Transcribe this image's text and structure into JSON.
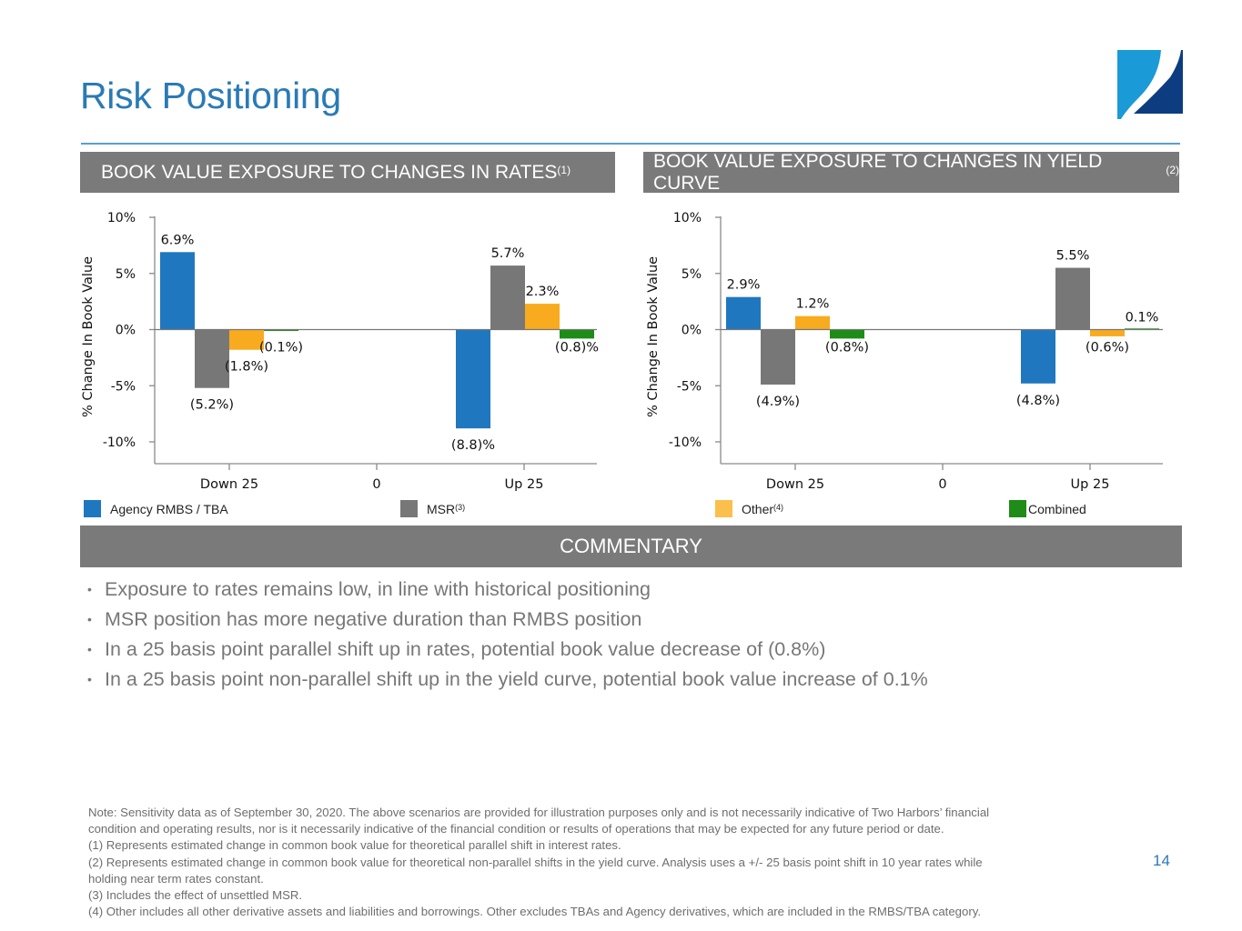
{
  "header": {
    "title": "Risk Positioning",
    "logo": "two-harbors-logo"
  },
  "sections": {
    "rates": {
      "title": "BOOK VALUE EXPOSURE TO CHANGES IN RATES",
      "footnote": "(1)"
    },
    "curve": {
      "title": "BOOK VALUE EXPOSURE TO CHANGES IN YIELD CURVE",
      "footnote": "(2)"
    }
  },
  "colors": {
    "agency": "#1f77bf",
    "msr": "#777777",
    "other": "#f8ab1e",
    "combined": "#1e8c17",
    "title_blue": "#2a7ab5",
    "section_gray": "#7a7a7a"
  },
  "chart_data": [
    {
      "type": "bar",
      "title": "BOOK VALUE EXPOSURE TO CHANGES IN RATES(1)",
      "xlabel": "",
      "ylabel": "% Change In Book Value",
      "ylim": [
        -10,
        10
      ],
      "yticks": [
        10,
        5,
        0,
        -5,
        -10
      ],
      "ytick_labels": [
        "10%",
        "5%",
        "0%",
        "-5%",
        "-10%"
      ],
      "categories": [
        "Down 25",
        "0",
        "Up 25"
      ],
      "series": [
        {
          "name": "Agency RMBS / TBA",
          "values": [
            6.9,
            null,
            -8.8
          ],
          "labels": [
            "6.9%",
            "",
            "(8.8)%"
          ]
        },
        {
          "name": "MSR(3)",
          "values": [
            -5.2,
            null,
            5.7
          ],
          "labels": [
            "(5.2%)",
            "",
            "5.7%"
          ]
        },
        {
          "name": "Other(4)",
          "values": [
            -1.8,
            null,
            2.3
          ],
          "labels": [
            "(1.8%)",
            "",
            "2.3%"
          ]
        },
        {
          "name": "Combined",
          "values": [
            -0.1,
            null,
            -0.8
          ],
          "labels": [
            "(0.1%)",
            "",
            "(0.8)%"
          ]
        }
      ],
      "grid": false,
      "legend": "bottom"
    },
    {
      "type": "bar",
      "title": "BOOK VALUE EXPOSURE TO CHANGES IN YIELD CURVE(2)",
      "xlabel": "",
      "ylabel": "% Change In Book Value",
      "ylim": [
        -10,
        10
      ],
      "yticks": [
        10,
        5,
        0,
        -5,
        -10
      ],
      "ytick_labels": [
        "10%",
        "5%",
        "0%",
        "-5%",
        "-10%"
      ],
      "categories": [
        "Down 25",
        "0",
        "Up 25"
      ],
      "series": [
        {
          "name": "Agency RMBS / TBA",
          "values": [
            2.9,
            null,
            -4.8
          ],
          "labels": [
            "2.9%",
            "",
            "(4.8%)"
          ]
        },
        {
          "name": "MSR(3)",
          "values": [
            -4.9,
            null,
            5.5
          ],
          "labels": [
            "(4.9%)",
            "",
            "5.5%"
          ]
        },
        {
          "name": "Other(4)",
          "values": [
            1.2,
            null,
            -0.6
          ],
          "labels": [
            "1.2%",
            "",
            "(0.6%)"
          ]
        },
        {
          "name": "Combined",
          "values": [
            -0.8,
            null,
            0.1
          ],
          "labels": [
            "(0.8%)",
            "",
            "0.1%"
          ]
        }
      ],
      "grid": false,
      "legend": "bottom"
    }
  ],
  "legend": [
    {
      "label": "Agency RMBS / TBA",
      "sup": "",
      "color_key": "agency"
    },
    {
      "label": "MSR",
      "sup": "(3)",
      "color_key": "msr"
    },
    {
      "label": "Other",
      "sup": "(4)",
      "color_key": "other"
    },
    {
      "label": "Combined",
      "sup": "",
      "color_key": "combined"
    }
  ],
  "commentary": {
    "title": "COMMENTARY",
    "bullets": [
      "Exposure to rates remains low, in line with historical positioning",
      "MSR position has more negative duration than RMBS position",
      "In a 25 basis point parallel shift up in rates, potential book value decrease of (0.8%)",
      "In a 25 basis point non-parallel shift up in the yield curve, potential book value increase of 0.1%"
    ],
    "bullet_glyph": "•"
  },
  "notes": [
    "Note: Sensitivity data as of September 30, 2020.  The above scenarios are provided for illustration purposes only and is not necessarily indicative of Two Harbors’ financial",
    "condition and operating results, nor is it necessarily indicative of the financial condition or results of operations that may be expected for any future period or date.",
    "(1) Represents estimated change in common book value for theoretical parallel shift in interest rates.",
    "(2) Represents estimated change in common book value for theoretical non-parallel shifts in the yield curve. Analysis uses a +/- 25 basis point shift in 10 year rates while",
    "holding near term rates constant.",
    "(3) Includes the effect of unsettled MSR.",
    "(4) Other includes all other derivative assets and liabilities and borrowings. Other excludes TBAs and Agency derivatives, which are included in the RMBS/TBA category."
  ],
  "page_number": "14"
}
